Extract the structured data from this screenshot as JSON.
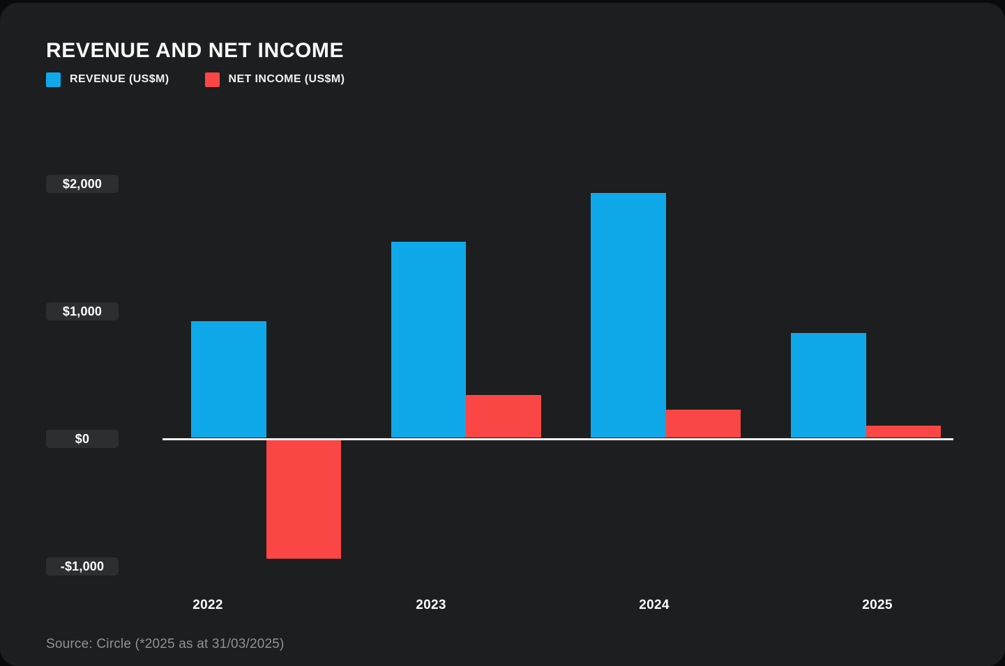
{
  "card": {
    "title": "REVENUE AND NET INCOME",
    "source": "Source: Circle (*2025 as at 31/03/2025)"
  },
  "legend": [
    {
      "label": "REVENUE (US$M)",
      "color": "#0fa8e9"
    },
    {
      "label": "NET INCOME (US$M)",
      "color": "#fb4646"
    }
  ],
  "chart_data": {
    "type": "bar",
    "title": "REVENUE AND NET INCOME",
    "categories": [
      "2022",
      "2023",
      "2024",
      "2025"
    ],
    "series": [
      {
        "name": "REVENUE (US$M)",
        "color": "#0fa8e9",
        "values": [
          915,
          1540,
          1920,
          820
        ]
      },
      {
        "name": "NET INCOME (US$M)",
        "color": "#fb4646",
        "values": [
          -930,
          335,
          220,
          95
        ]
      }
    ],
    "ylabel": "US$M",
    "ylim": [
      -1000,
      2000
    ],
    "y_tick_values": [
      2000,
      1000,
      0,
      -1000
    ],
    "y_tick_labels": [
      "$2,000",
      "$1,000",
      "$0",
      "-$1,000"
    ],
    "grid": false,
    "legend_position": "top-left",
    "axis_line": "zero-baseline",
    "source": "Source: Circle (*2025 as at 31/03/2025)"
  },
  "colors": {
    "panel_bg": "#1d1e1f",
    "page_bg": "#0a0a0b",
    "bottom_accent": "#2f3e47",
    "tick_chip_bg": "#2d2e2f",
    "baseline": "#f2f2f2",
    "text": "#fafafa",
    "muted_text": "#909294"
  }
}
